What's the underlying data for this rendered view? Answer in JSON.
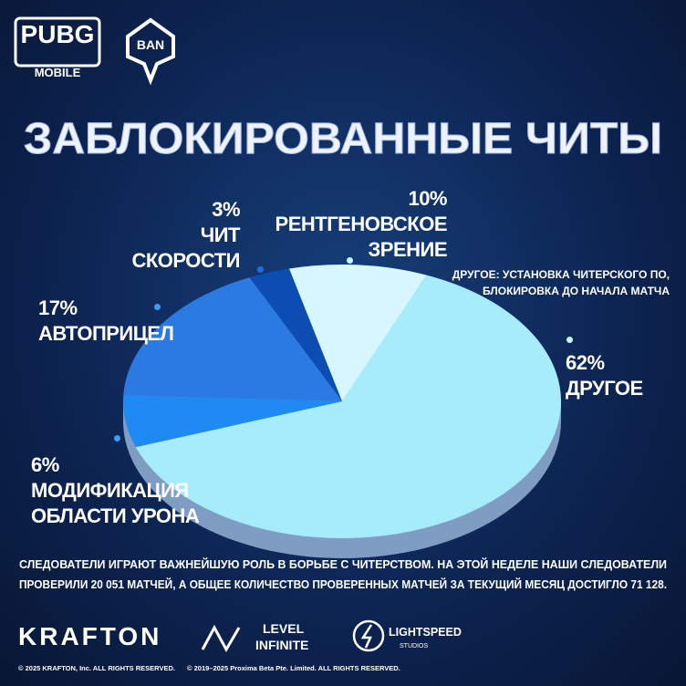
{
  "logos": {
    "pubg": "PUBG",
    "mobile": "MOBILE",
    "ban": "BAN",
    "krafton": "KRAFTON",
    "level": "LEVEL",
    "infinite": "INFINITE",
    "lightspeed": "LIGHTSPEED",
    "studios": "STUDIOS"
  },
  "chart_data": {
    "type": "pie",
    "title": "ЗАБЛОКИРОВАННЫЕ ЧИТЫ",
    "categories": [
      "РЕНТГЕНОВСКОЕ ЗРЕНИЕ",
      "ДРУГОЕ",
      "МОДИФИКАЦИЯ ОБЛАСТИ УРОНА",
      "АВТОПРИЦЕЛ",
      "ЧИТ СКОРОСТИ"
    ],
    "values": [
      10,
      62,
      6,
      17,
      3
    ],
    "value_labels": [
      "10%",
      "62%",
      "6%",
      "17%",
      "3%"
    ],
    "colors": [
      "#d6f7ff",
      "#a6ecfb",
      "#1f8af2",
      "#2b7ae4",
      "#0c4db3"
    ],
    "annotation": "ДРУГОЕ: УСТАНОВКА ЧИТЕРСКОГО ПО, БЛОКИРОВКА ДО НАЧАЛА МАТЧА"
  },
  "footer": {
    "lines": [
      "СЛЕДОВАТЕЛИ ИГРАЮТ ВАЖНЕЙШУЮ РОЛЬ В БОРЬБЕ С ЧИТЕРСТВОМ. НА ЭТОЙ НЕДЕЛЕ НАШИ СЛЕДОВАТЕЛИ",
      "ПРОВЕРИЛИ 20 051 МАТЧЕЙ, А ОБЩЕЕ КОЛИЧЕСТВО ПРОВЕРЕННЫХ МАТЧЕЙ ЗА ТЕКУЩИЙ МЕСЯЦ ДОСТИГЛО 71 128."
    ],
    "copyright": [
      "© 2025 KRAFTON, Inc. ALL RIGHTS RESERVED.",
      "© 2019–2025 Proxima Beta Pte. Limited. ALL RIGHTS RESERVED."
    ]
  }
}
